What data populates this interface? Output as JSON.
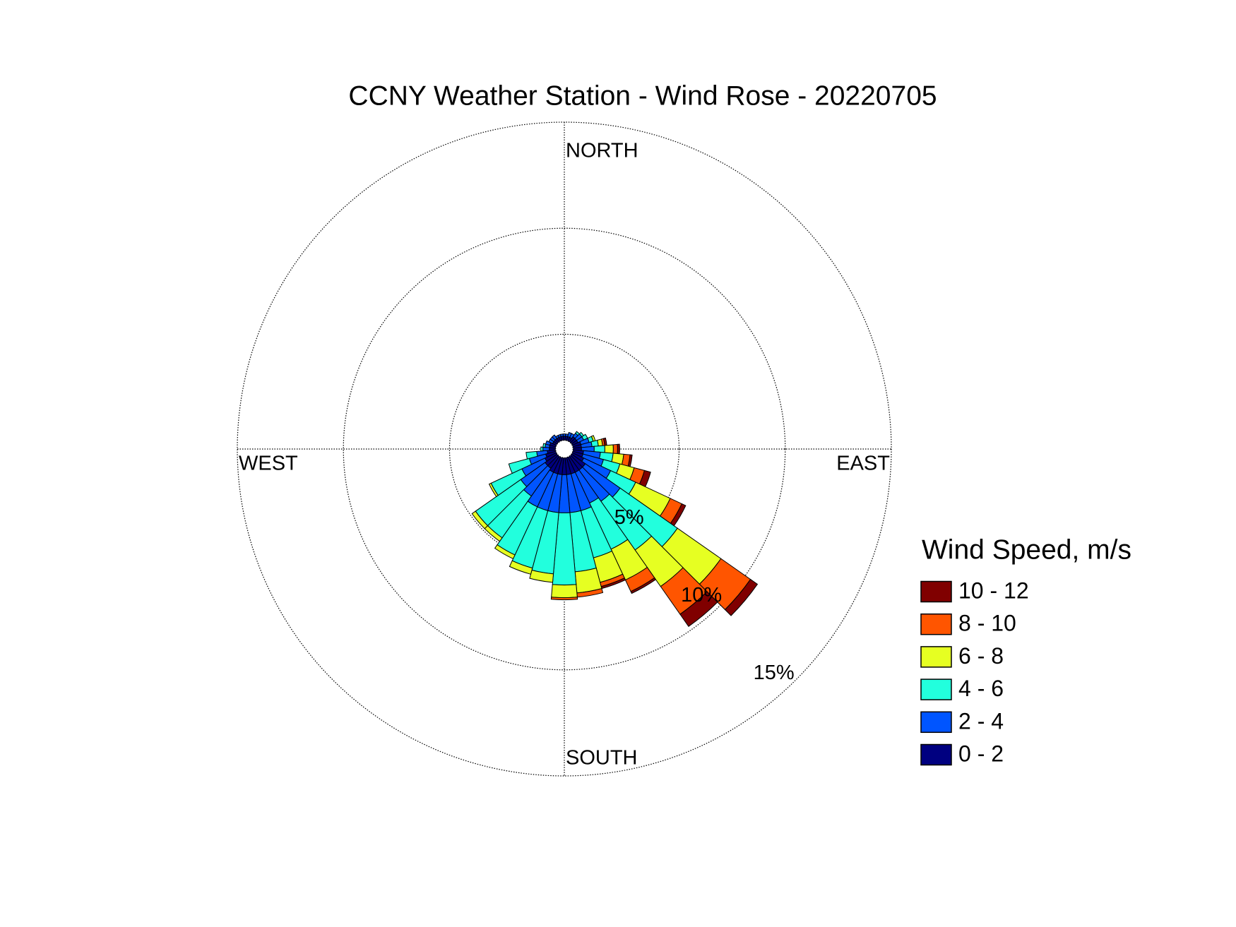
{
  "chart_data": {
    "type": "windrose",
    "title": "CCNY Weather Station - Wind Rose - 20220705",
    "direction_labels": [
      "NORTH",
      "EAST",
      "SOUTH",
      "WEST"
    ],
    "legend_title": "Wind Speed, m/s",
    "rlim": [
      0,
      15
    ],
    "rticks": [
      {
        "value": 5,
        "label": "5%"
      },
      {
        "value": 10,
        "label": "10%"
      },
      {
        "value": 15,
        "label": "15%"
      }
    ],
    "grid": true,
    "categories": [
      null,
      null,
      null,
      null,
      null,
      null,
      null,
      null,
      null,
      null,
      null,
      null,
      null,
      null,
      null,
      null,
      null,
      null,
      null,
      null,
      null,
      null,
      null,
      null,
      null,
      null,
      null,
      null,
      null,
      null,
      null,
      null,
      null,
      null,
      null,
      null
    ],
    "series": [
      {
        "name": "0 - 2",
        "color": "#000080",
        "values": [
          0.2,
          0.2,
          0.2,
          0.2,
          0.3,
          0.3,
          0.3,
          0.4,
          0.4,
          0.4,
          0.5,
          0.5,
          0.6,
          0.8,
          0.8,
          0.8,
          0.8,
          0.8,
          0.8,
          0.8,
          0.8,
          0.8,
          0.7,
          0.7,
          0.6,
          0.5,
          0.4,
          0.3,
          0.3,
          0.3,
          0.2,
          0.2,
          0.2,
          0.2,
          0.2,
          0.2
        ]
      },
      {
        "name": "2 - 4",
        "color": "#0055ff",
        "values": [
          0.1,
          0.1,
          0.2,
          0.2,
          0.2,
          0.3,
          0.3,
          0.4,
          0.5,
          0.6,
          0.8,
          1.0,
          1.4,
          2.0,
          1.8,
          1.6,
          1.8,
          1.8,
          1.8,
          1.8,
          1.8,
          1.8,
          1.6,
          1.4,
          1.2,
          0.8,
          0.5,
          0.3,
          0.2,
          0.2,
          0.2,
          0.2,
          0.2,
          0.1,
          0.1,
          0.1
        ]
      },
      {
        "name": "4 - 6",
        "color": "#22ffdd",
        "values": [
          0,
          0,
          0,
          0,
          0.1,
          0.1,
          0.2,
          0.2,
          0.3,
          0.5,
          0.6,
          0.8,
          1.3,
          3.3,
          2.8,
          2.4,
          2.3,
          2.8,
          3.4,
          2.9,
          2.8,
          2.5,
          2.4,
          2.6,
          1.6,
          1.0,
          0.5,
          0.1,
          0.1,
          0,
          0,
          0,
          0,
          0,
          0,
          0
        ]
      },
      {
        "name": "6 - 8",
        "color": "#e6ff22",
        "values": [
          0,
          0,
          0,
          0,
          0,
          0,
          0,
          0.1,
          0.2,
          0.4,
          0.5,
          0.7,
          1.8,
          2.5,
          2.1,
          1.6,
          1.2,
          1.0,
          0.6,
          0.4,
          0.3,
          0.2,
          0.2,
          0.2,
          0.1,
          0,
          0,
          0,
          0,
          0,
          0,
          0,
          0,
          0,
          0,
          0
        ]
      },
      {
        "name": "8 - 10",
        "color": "#ff5500",
        "values": [
          0,
          0,
          0,
          0,
          0,
          0,
          0,
          0,
          0.1,
          0.2,
          0.3,
          0.5,
          0.6,
          1.7,
          1.6,
          0.6,
          0.2,
          0.2,
          0.1,
          0,
          0,
          0,
          0,
          0,
          0,
          0,
          0,
          0,
          0,
          0,
          0,
          0,
          0,
          0,
          0,
          0
        ]
      },
      {
        "name": "10 - 12",
        "color": "#800000",
        "values": [
          0,
          0,
          0,
          0,
          0,
          0,
          0,
          0,
          0.1,
          0.1,
          0.1,
          0.3,
          0.2,
          0.4,
          0.7,
          0.1,
          0.1,
          0,
          0,
          0,
          0,
          0,
          0,
          0,
          0,
          0,
          0,
          0,
          0,
          0,
          0,
          0,
          0,
          0,
          0,
          0
        ]
      }
    ]
  }
}
